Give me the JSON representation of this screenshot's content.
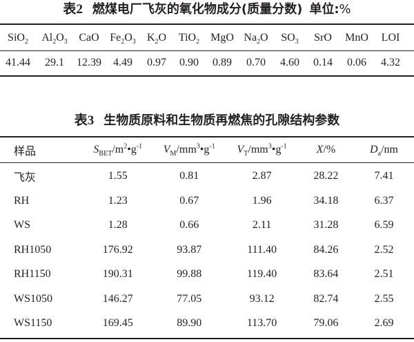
{
  "table2": {
    "number": "表2",
    "title": "燃煤电厂飞灰的氧化物成分(质量分数)",
    "unit_label": "单位:",
    "unit": "%",
    "headers": [
      {
        "base": "SiO",
        "sub": "2",
        "tail": ""
      },
      {
        "base": "Al",
        "sub": "2",
        "tail": "O",
        "sub2": "3"
      },
      {
        "base": "CaO",
        "sub": "",
        "tail": ""
      },
      {
        "base": "Fe",
        "sub": "2",
        "tail": "O",
        "sub2": "3"
      },
      {
        "base": "K",
        "sub": "2",
        "tail": "O"
      },
      {
        "base": "TiO",
        "sub": "2",
        "tail": ""
      },
      {
        "base": "MgO",
        "sub": "",
        "tail": ""
      },
      {
        "base": "Na",
        "sub": "2",
        "tail": "O"
      },
      {
        "base": "SO",
        "sub": "3",
        "tail": ""
      },
      {
        "base": "SrO",
        "sub": "",
        "tail": ""
      },
      {
        "base": "MnO",
        "sub": "",
        "tail": ""
      },
      {
        "base": "LOI",
        "sub": "",
        "tail": ""
      }
    ],
    "values": [
      "41.44",
      "29.1",
      "12.39",
      "4.49",
      "0.97",
      "0.90",
      "0.89",
      "0.70",
      "4.60",
      "0.14",
      "0.06",
      "4.32"
    ]
  },
  "table3": {
    "number": "表3",
    "title": "生物质原料和生物质再燃焦的孔隙结构参数",
    "headers": {
      "sample": "样品",
      "sbet": {
        "var": "S",
        "sub": "BET",
        "unit": "/m",
        "sup": "2",
        "unit2": "•g",
        "sup2": "-1"
      },
      "vm": {
        "var": "V",
        "sub": "M",
        "unit": "/mm",
        "sup": "3",
        "unit2": "•g",
        "sup2": "-1"
      },
      "vt": {
        "var": "V",
        "sub": "T",
        "unit": "/mm",
        "sup": "3",
        "unit2": "•g",
        "sup2": "-1"
      },
      "x": {
        "var": "X",
        "unit": "/%"
      },
      "da": {
        "var": "D",
        "sub": "a",
        "unit": "/nm"
      }
    },
    "rows": [
      {
        "name": "飞灰",
        "sbet": "1.55",
        "vm": "0.81",
        "vt": "2.87",
        "x": "28.22",
        "da": "7.41"
      },
      {
        "name": "RH",
        "sbet": "1.23",
        "vm": "0.67",
        "vt": "1.96",
        "x": "34.18",
        "da": "6.37"
      },
      {
        "name": "WS",
        "sbet": "1.28",
        "vm": "0.66",
        "vt": "2.11",
        "x": "31.28",
        "da": "6.59"
      },
      {
        "name": "RH1050",
        "sbet": "176.92",
        "vm": "93.87",
        "vt": "111.40",
        "x": "84.26",
        "da": "2.52"
      },
      {
        "name": "RH1150",
        "sbet": "190.31",
        "vm": "99.88",
        "vt": "119.40",
        "x": "83.64",
        "da": "2.51"
      },
      {
        "name": "WS1050",
        "sbet": "146.27",
        "vm": "77.05",
        "vt": "93.12",
        "x": "82.74",
        "da": "2.55"
      },
      {
        "name": "WS1150",
        "sbet": "169.45",
        "vm": "89.90",
        "vt": "113.70",
        "x": "79.06",
        "da": "2.69"
      }
    ]
  }
}
